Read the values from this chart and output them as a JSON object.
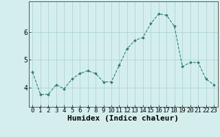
{
  "x": [
    0,
    1,
    2,
    3,
    4,
    5,
    6,
    7,
    8,
    9,
    10,
    11,
    12,
    13,
    14,
    15,
    16,
    17,
    18,
    19,
    20,
    21,
    22,
    23
  ],
  "y": [
    4.55,
    3.75,
    3.75,
    4.1,
    3.95,
    4.3,
    4.5,
    4.6,
    4.5,
    4.2,
    4.2,
    4.8,
    5.4,
    5.7,
    5.8,
    6.3,
    6.65,
    6.6,
    6.2,
    4.75,
    4.9,
    4.9,
    4.3,
    4.1
  ],
  "xlabel": "Humidex (Indice chaleur)",
  "xlim": [
    -0.5,
    23.5
  ],
  "ylim": [
    3.3,
    7.1
  ],
  "yticks": [
    4,
    5,
    6
  ],
  "xticks": [
    0,
    1,
    2,
    3,
    4,
    5,
    6,
    7,
    8,
    9,
    10,
    11,
    12,
    13,
    14,
    15,
    16,
    17,
    18,
    19,
    20,
    21,
    22,
    23
  ],
  "xtick_labels": [
    "0",
    "1",
    "2",
    "3",
    "4",
    "5",
    "6",
    "7",
    "8",
    "9",
    "10",
    "11",
    "12",
    "13",
    "14",
    "15",
    "16",
    "17",
    "18",
    "19",
    "20",
    "21",
    "22",
    "23"
  ],
  "line_color": "#2d7d6e",
  "marker": "D",
  "marker_size": 2.0,
  "bg_color": "#d4eeee",
  "grid_color": "#aed4d4",
  "xlabel_fontsize": 8,
  "tick_fontsize": 6.5
}
